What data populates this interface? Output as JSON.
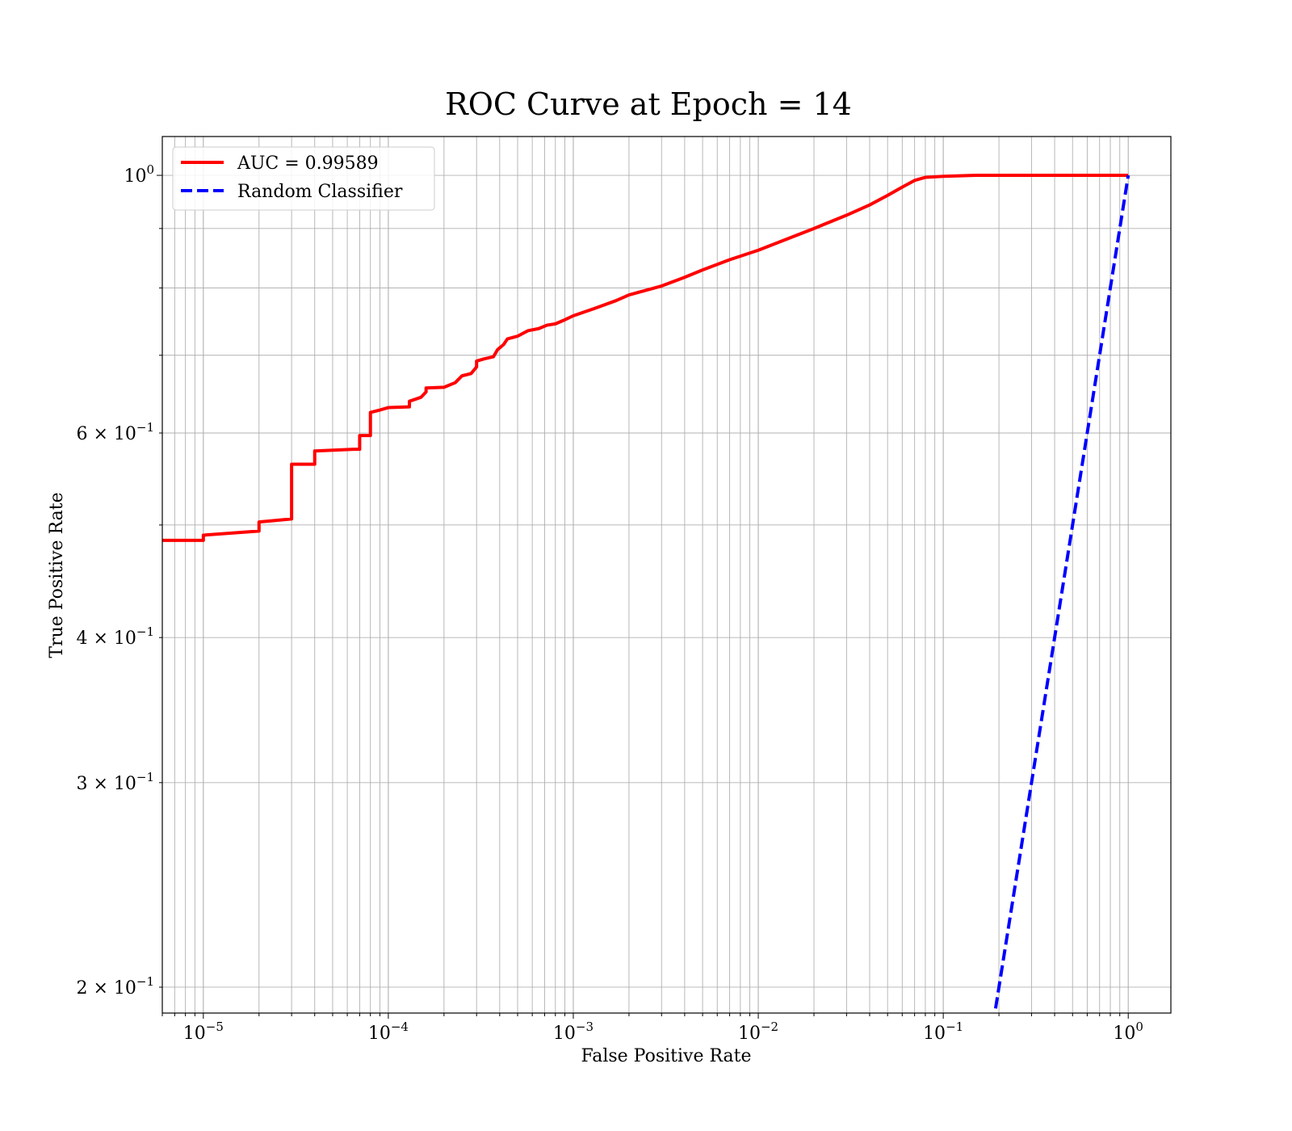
{
  "chart_data": {
    "type": "line",
    "title": "ROC Curve at Epoch = 14",
    "xlabel": "False Positive Rate",
    "ylabel": "True Positive Rate",
    "xscale": "log",
    "yscale": "log",
    "xlim": [
      6e-06,
      1.7
    ],
    "ylim": [
      0.19,
      1.08
    ],
    "grid": "both major and minor",
    "legend_position": "top-left",
    "x_ticks": [
      {
        "value": 1e-05,
        "base": "10",
        "exp": "−5"
      },
      {
        "value": 0.0001,
        "base": "10",
        "exp": "−4"
      },
      {
        "value": 0.001,
        "base": "10",
        "exp": "−3"
      },
      {
        "value": 0.01,
        "base": "10",
        "exp": "−2"
      },
      {
        "value": 0.1,
        "base": "10",
        "exp": "−1"
      },
      {
        "value": 1,
        "base": "10",
        "exp": "0"
      }
    ],
    "y_ticks": [
      {
        "value": 1.0,
        "pre": "",
        "base": "10",
        "exp": "0"
      },
      {
        "value": 0.6,
        "pre": "6 × ",
        "base": "10",
        "exp": "−1"
      },
      {
        "value": 0.4,
        "pre": "4 × ",
        "base": "10",
        "exp": "−1"
      },
      {
        "value": 0.3,
        "pre": "3 × ",
        "base": "10",
        "exp": "−1"
      },
      {
        "value": 0.2,
        "pre": "2 × ",
        "base": "10",
        "exp": "−1"
      }
    ],
    "series": [
      {
        "name": "AUC = 0.99589",
        "color": "#ff0000",
        "style": "solid",
        "x": [
          6e-06,
          1e-05,
          1e-05,
          2e-05,
          2e-05,
          3e-05,
          3e-05,
          4e-05,
          4e-05,
          6.5e-05,
          7e-05,
          7e-05,
          8e-05,
          8e-05,
          9e-05,
          0.0001,
          0.00013,
          0.00013,
          0.00015,
          0.00016,
          0.00016,
          0.0002,
          0.00023,
          0.00025,
          0.00028,
          0.0003,
          0.0003,
          0.00033,
          0.00037,
          0.00039,
          0.00042,
          0.00044,
          0.0005,
          0.00057,
          0.00065,
          0.00072,
          0.0008,
          0.0009,
          0.001,
          0.0013,
          0.0017,
          0.002,
          0.003,
          0.004,
          0.005,
          0.007,
          0.01,
          0.015,
          0.02,
          0.03,
          0.04,
          0.05,
          0.06,
          0.07,
          0.08,
          0.1,
          0.15,
          0.3,
          0.5,
          1.0
        ],
        "y": [
          0.485,
          0.485,
          0.49,
          0.494,
          0.503,
          0.506,
          0.564,
          0.564,
          0.579,
          0.581,
          0.581,
          0.597,
          0.597,
          0.625,
          0.628,
          0.631,
          0.632,
          0.639,
          0.644,
          0.651,
          0.656,
          0.657,
          0.663,
          0.672,
          0.675,
          0.684,
          0.692,
          0.695,
          0.698,
          0.708,
          0.715,
          0.723,
          0.727,
          0.735,
          0.738,
          0.743,
          0.745,
          0.751,
          0.757,
          0.768,
          0.78,
          0.789,
          0.803,
          0.817,
          0.829,
          0.846,
          0.862,
          0.884,
          0.9,
          0.924,
          0.943,
          0.961,
          0.977,
          0.99,
          0.996,
          0.998,
          1.0,
          1.0,
          1.0,
          1.0
        ]
      },
      {
        "name": "Random Classifier",
        "color": "#0000ff",
        "style": "dashed",
        "x": [
          0.18,
          1.0
        ],
        "y": [
          0.18,
          1.0
        ]
      }
    ]
  }
}
